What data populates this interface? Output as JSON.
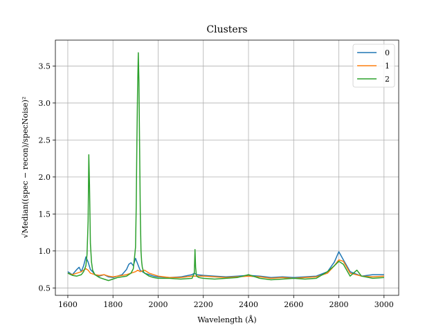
{
  "chart_data": {
    "type": "line",
    "title": "Clusters",
    "xlabel": "Wavelength (Å)",
    "ylabel": "√Median((spec − recon)/specNoise)²",
    "xlim": [
      1545,
      3065
    ],
    "ylim": [
      0.4,
      3.85
    ],
    "xticks": [
      1600,
      1800,
      2000,
      2200,
      2400,
      2600,
      2800,
      3000
    ],
    "yticks": [
      0.5,
      1.0,
      1.5,
      2.0,
      2.5,
      3.0,
      3.5
    ],
    "ytick_labels": [
      "0.5",
      "1.0",
      "1.5",
      "2.0",
      "2.5",
      "3.0",
      "3.5"
    ],
    "grid": true,
    "legend_position": "top-right",
    "series": [
      {
        "name": "0",
        "color": "#1f77b4",
        "x": [
          1600,
          1620,
          1640,
          1650,
          1660,
          1670,
          1680,
          1690,
          1700,
          1710,
          1720,
          1740,
          1760,
          1780,
          1800,
          1820,
          1840,
          1860,
          1870,
          1880,
          1890,
          1900,
          1910,
          1920,
          1930,
          1940,
          1960,
          1980,
          2000,
          2050,
          2100,
          2150,
          2160,
          2170,
          2200,
          2250,
          2300,
          2350,
          2400,
          2450,
          2500,
          2550,
          2600,
          2650,
          2700,
          2750,
          2780,
          2800,
          2820,
          2850,
          2900,
          2950,
          3000
        ],
        "y": [
          0.72,
          0.68,
          0.75,
          0.78,
          0.72,
          0.8,
          0.92,
          0.85,
          0.75,
          0.72,
          0.68,
          0.66,
          0.68,
          0.65,
          0.64,
          0.66,
          0.68,
          0.75,
          0.82,
          0.84,
          0.8,
          0.9,
          0.82,
          0.74,
          0.72,
          0.7,
          0.68,
          0.66,
          0.65,
          0.64,
          0.65,
          0.68,
          0.7,
          0.68,
          0.67,
          0.66,
          0.65,
          0.66,
          0.67,
          0.66,
          0.64,
          0.65,
          0.64,
          0.65,
          0.66,
          0.72,
          0.85,
          0.99,
          0.88,
          0.72,
          0.66,
          0.68,
          0.68
        ]
      },
      {
        "name": "1",
        "color": "#ff7f0e",
        "x": [
          1600,
          1620,
          1640,
          1660,
          1680,
          1690,
          1700,
          1720,
          1740,
          1760,
          1780,
          1800,
          1820,
          1840,
          1860,
          1880,
          1900,
          1910,
          1920,
          1930,
          1940,
          1960,
          1980,
          2000,
          2050,
          2100,
          2150,
          2200,
          2250,
          2300,
          2350,
          2400,
          2450,
          2500,
          2550,
          2600,
          2650,
          2700,
          2750,
          2780,
          2800,
          2820,
          2850,
          2900,
          2950,
          3000
        ],
        "y": [
          0.7,
          0.68,
          0.7,
          0.72,
          0.76,
          0.74,
          0.7,
          0.68,
          0.67,
          0.68,
          0.66,
          0.65,
          0.66,
          0.67,
          0.68,
          0.7,
          0.72,
          0.74,
          0.72,
          0.73,
          0.74,
          0.7,
          0.68,
          0.66,
          0.64,
          0.64,
          0.66,
          0.66,
          0.65,
          0.64,
          0.65,
          0.66,
          0.65,
          0.63,
          0.64,
          0.63,
          0.64,
          0.65,
          0.7,
          0.8,
          0.88,
          0.86,
          0.7,
          0.66,
          0.65,
          0.66
        ]
      },
      {
        "name": "2",
        "color": "#2ca02c",
        "x": [
          1600,
          1620,
          1640,
          1660,
          1670,
          1680,
          1685,
          1690,
          1693,
          1696,
          1700,
          1705,
          1710,
          1720,
          1740,
          1760,
          1780,
          1800,
          1820,
          1840,
          1860,
          1880,
          1890,
          1895,
          1900,
          1903,
          1906,
          1909,
          1912,
          1915,
          1918,
          1921,
          1924,
          1927,
          1930,
          1935,
          1940,
          1960,
          1980,
          2000,
          2050,
          2100,
          2150,
          2160,
          2163,
          2166,
          2170,
          2180,
          2200,
          2250,
          2300,
          2350,
          2400,
          2450,
          2500,
          2550,
          2600,
          2650,
          2700,
          2750,
          2780,
          2800,
          2820,
          2850,
          2880,
          2900,
          2950,
          3000
        ],
        "y": [
          0.7,
          0.67,
          0.66,
          0.68,
          0.72,
          0.8,
          0.95,
          1.4,
          2.3,
          1.9,
          1.1,
          0.85,
          0.74,
          0.68,
          0.64,
          0.62,
          0.6,
          0.62,
          0.64,
          0.65,
          0.66,
          0.7,
          0.76,
          0.9,
          1.05,
          1.6,
          2.5,
          3.2,
          3.68,
          3.3,
          2.4,
          1.5,
          1.0,
          0.85,
          0.78,
          0.72,
          0.7,
          0.66,
          0.64,
          0.63,
          0.63,
          0.62,
          0.63,
          0.7,
          1.02,
          0.78,
          0.66,
          0.64,
          0.63,
          0.62,
          0.63,
          0.64,
          0.68,
          0.63,
          0.61,
          0.62,
          0.63,
          0.62,
          0.63,
          0.72,
          0.8,
          0.86,
          0.82,
          0.66,
          0.74,
          0.66,
          0.63,
          0.64
        ]
      }
    ]
  }
}
